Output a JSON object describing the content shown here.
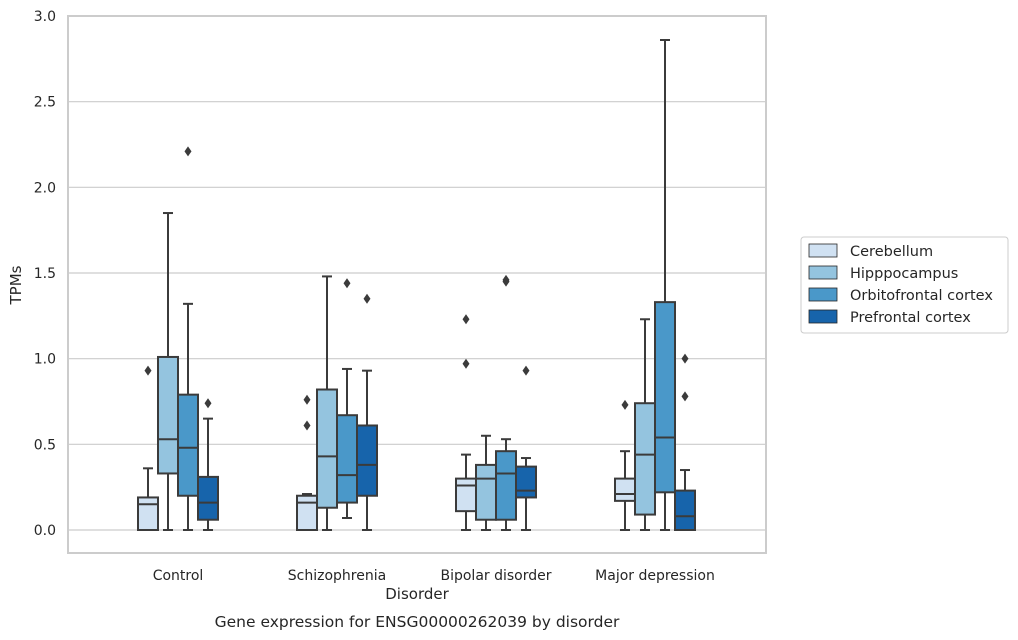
{
  "chart_data": {
    "type": "boxplot",
    "title": "Gene expression for ENSG00000262039 by disorder",
    "xlabel": "Disorder",
    "ylabel": "TPMs",
    "ylim": [
      -0.14,
      3.0
    ],
    "yticks": [
      0.0,
      0.5,
      1.0,
      1.5,
      2.0,
      2.5,
      3.0
    ],
    "ytick_labels": [
      "0.0",
      "0.5",
      "1.0",
      "1.5",
      "2.0",
      "2.5",
      "3.0"
    ],
    "grid": "horizontal",
    "legend_position": "right",
    "categories": [
      "Control",
      "Schizophrenia",
      "Bipolar disorder",
      "Major depression"
    ],
    "series": [
      {
        "name": "Cerebellum",
        "color": "#d0e1f2",
        "boxes": [
          {
            "whisker_low": 0.0,
            "q1": 0.0,
            "median": 0.15,
            "q3": 0.19,
            "whisker_high": 0.36,
            "outliers": [
              0.93
            ]
          },
          {
            "whisker_low": 0.0,
            "q1": 0.0,
            "median": 0.16,
            "q3": 0.2,
            "whisker_high": 0.21,
            "outliers": [
              0.76,
              0.61
            ]
          },
          {
            "whisker_low": 0.0,
            "q1": 0.11,
            "median": 0.26,
            "q3": 0.3,
            "whisker_high": 0.44,
            "outliers": [
              1.23,
              0.97
            ]
          },
          {
            "whisker_low": 0.0,
            "q1": 0.17,
            "median": 0.21,
            "q3": 0.3,
            "whisker_high": 0.46,
            "outliers": [
              0.73
            ]
          }
        ]
      },
      {
        "name": "Hipppocampus",
        "color": "#94c4df",
        "boxes": [
          {
            "whisker_low": 0.0,
            "q1": 0.33,
            "median": 0.53,
            "q3": 1.01,
            "whisker_high": 1.85,
            "outliers": []
          },
          {
            "whisker_low": 0.0,
            "q1": 0.13,
            "median": 0.43,
            "q3": 0.82,
            "whisker_high": 1.48,
            "outliers": []
          },
          {
            "whisker_low": 0.0,
            "q1": 0.06,
            "median": 0.3,
            "q3": 0.38,
            "whisker_high": 0.55,
            "outliers": []
          },
          {
            "whisker_low": 0.0,
            "q1": 0.09,
            "median": 0.44,
            "q3": 0.74,
            "whisker_high": 1.23,
            "outliers": []
          }
        ]
      },
      {
        "name": "Orbitofrontal cortex",
        "color": "#4a98c9",
        "boxes": [
          {
            "whisker_low": 0.0,
            "q1": 0.2,
            "median": 0.48,
            "q3": 0.79,
            "whisker_high": 1.32,
            "outliers": [
              2.21
            ]
          },
          {
            "whisker_low": 0.07,
            "q1": 0.16,
            "median": 0.32,
            "q3": 0.67,
            "whisker_high": 0.94,
            "outliers": [
              1.44
            ]
          },
          {
            "whisker_low": 0.0,
            "q1": 0.06,
            "median": 0.33,
            "q3": 0.46,
            "whisker_high": 0.53,
            "outliers": [
              1.46,
              1.45
            ]
          },
          {
            "whisker_low": 0.0,
            "q1": 0.22,
            "median": 0.54,
            "q3": 1.33,
            "whisker_high": 2.86,
            "outliers": []
          }
        ]
      },
      {
        "name": "Prefrontal cortex",
        "color": "#1764ab",
        "boxes": [
          {
            "whisker_low": 0.0,
            "q1": 0.06,
            "median": 0.16,
            "q3": 0.31,
            "whisker_high": 0.65,
            "outliers": [
              0.74
            ]
          },
          {
            "whisker_low": 0.0,
            "q1": 0.2,
            "median": 0.38,
            "q3": 0.61,
            "whisker_high": 0.93,
            "outliers": [
              1.35
            ]
          },
          {
            "whisker_low": 0.0,
            "q1": 0.19,
            "median": 0.23,
            "q3": 0.37,
            "whisker_high": 0.42,
            "outliers": [
              0.93
            ]
          },
          {
            "whisker_low": 0.0,
            "q1": 0.0,
            "median": 0.08,
            "q3": 0.23,
            "whisker_high": 0.35,
            "outliers": [
              1.0,
              0.78
            ]
          }
        ]
      }
    ]
  },
  "colors": {
    "grid": "#cccccc",
    "frame": "#cccccc",
    "line": "#3b3b3b",
    "text": "#262626"
  }
}
